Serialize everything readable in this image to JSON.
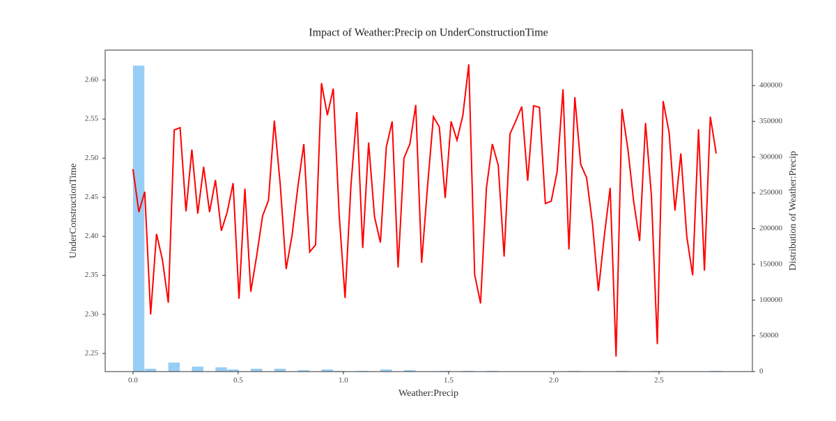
{
  "chart_data": {
    "type": "line",
    "title": "Impact of Weather:Precip on UnderConstructionTime",
    "xlabel": "Weather:Precip",
    "ylabel": "UnderConstructionTime",
    "y2label": "Distribution of Weather:Precip",
    "xlim": [
      -0.132,
      2.944
    ],
    "xticks": [
      {
        "value": 0,
        "label": "0.0"
      },
      0.5,
      {
        "value": 1,
        "label": "1.0"
      },
      1.5,
      {
        "value": 2,
        "label": "2.0"
      },
      2.5
    ],
    "ylim": [
      2.2268,
      2.6383
    ],
    "yticks": [
      2.25,
      {
        "value": 2.3,
        "label": "2.30"
      },
      2.35,
      {
        "value": 2.4,
        "label": "2.40"
      },
      2.45,
      {
        "value": 2.5,
        "label": "2.50"
      },
      2.55,
      {
        "value": 2.6,
        "label": "2.60"
      }
    ],
    "y2lim": [
      0,
      449600
    ],
    "y2ticks": [
      0,
      50000,
      100000,
      150000,
      200000,
      250000,
      300000,
      350000,
      400000
    ],
    "x": [
      0,
      0.028,
      0.056,
      0.084,
      0.112,
      0.14,
      0.168,
      0.196,
      0.224,
      0.252,
      0.28,
      0.308,
      0.336,
      0.364,
      0.392,
      0.42,
      0.448,
      0.476,
      0.504,
      0.532,
      0.56,
      0.588,
      0.616,
      0.644,
      0.672,
      0.7,
      0.728,
      0.756,
      0.784,
      0.812,
      0.84,
      0.868,
      0.896,
      0.924,
      0.952,
      0.98,
      1.008,
      1.036,
      1.064,
      1.092,
      1.12,
      1.148,
      1.176,
      1.204,
      1.232,
      1.26,
      1.288,
      1.316,
      1.344,
      1.372,
      1.4,
      1.428,
      1.456,
      1.484,
      1.512,
      1.54,
      1.568,
      1.596,
      1.624,
      1.652,
      1.68,
      1.708,
      1.736,
      1.764,
      1.792,
      1.82,
      1.848,
      1.876,
      1.904,
      1.932,
      1.96,
      1.988,
      2.016,
      2.044,
      2.072,
      2.1,
      2.128,
      2.156,
      2.184,
      2.212,
      2.24,
      2.268,
      2.296,
      2.324,
      2.352,
      2.38,
      2.408,
      2.436,
      2.464,
      2.492,
      2.52,
      2.548,
      2.576,
      2.604,
      2.632,
      2.66,
      2.688,
      2.716,
      2.744,
      2.772
    ],
    "series": [
      {
        "type": "line",
        "color": "#ff0000",
        "values": [
          2.486,
          2.431,
          2.457,
          2.3,
          2.403,
          2.37,
          2.315,
          2.536,
          2.539,
          2.432,
          2.511,
          2.429,
          2.489,
          2.431,
          2.472,
          2.407,
          2.431,
          2.468,
          2.32,
          2.461,
          2.329,
          2.375,
          2.426,
          2.446,
          2.548,
          2.466,
          2.358,
          2.401,
          2.464,
          2.518,
          2.38,
          2.389,
          2.596,
          2.555,
          2.589,
          2.428,
          2.321,
          2.465,
          2.559,
          2.385,
          2.52,
          2.425,
          2.392,
          2.514,
          2.547,
          2.36,
          2.5,
          2.518,
          2.568,
          2.366,
          2.464,
          2.553,
          2.54,
          2.449,
          2.547,
          2.523,
          2.555,
          2.62,
          2.351,
          2.314,
          2.462,
          2.518,
          2.491,
          2.374,
          2.531,
          2.548,
          2.566,
          2.471,
          2.567,
          2.565,
          2.442,
          2.445,
          2.483,
          2.588,
          2.383,
          2.578,
          2.492,
          2.475,
          2.416,
          2.33,
          2.4,
          2.462,
          2.246,
          2.563,
          2.512,
          2.444,
          2.394,
          2.545,
          2.452,
          2.262,
          2.573,
          2.533,
          2.433,
          2.506,
          2.4,
          2.35,
          2.537,
          2.356,
          2.553,
          2.506
        ]
      },
      {
        "type": "histogram",
        "axis": "y2",
        "color": "#92cbf5",
        "bins": [
          0,
          0.056,
          0.112,
          0.168,
          0.224,
          0.28,
          0.336,
          0.392,
          0.448,
          0.504,
          0.56,
          0.616,
          0.672,
          0.728,
          0.784,
          0.84,
          0.896,
          0.952,
          1.008,
          1.064,
          1.12,
          1.176,
          1.232,
          1.288,
          1.344,
          1.4,
          1.456,
          1.512,
          1.568,
          1.624,
          1.68,
          1.736,
          1.792,
          1.848,
          1.904,
          1.96,
          2.016,
          2.072,
          2.128,
          2.184,
          2.24,
          2.296,
          2.352,
          2.408,
          2.464,
          2.52,
          2.576,
          2.632,
          2.688,
          2.744,
          2.8
        ],
        "values": [
          428000,
          4000,
          0,
          12600,
          0,
          7000,
          0,
          6000,
          3000,
          0,
          4000,
          0,
          4000,
          0,
          2000,
          0,
          3000,
          1000,
          0,
          1000,
          0,
          3000,
          0,
          2000,
          0,
          0,
          1000,
          0,
          1000,
          0,
          1000,
          0,
          0,
          0,
          0,
          0,
          0,
          1000,
          0,
          0,
          0,
          1000,
          0,
          0,
          1000,
          0,
          0,
          0,
          0,
          1000
        ]
      }
    ]
  }
}
